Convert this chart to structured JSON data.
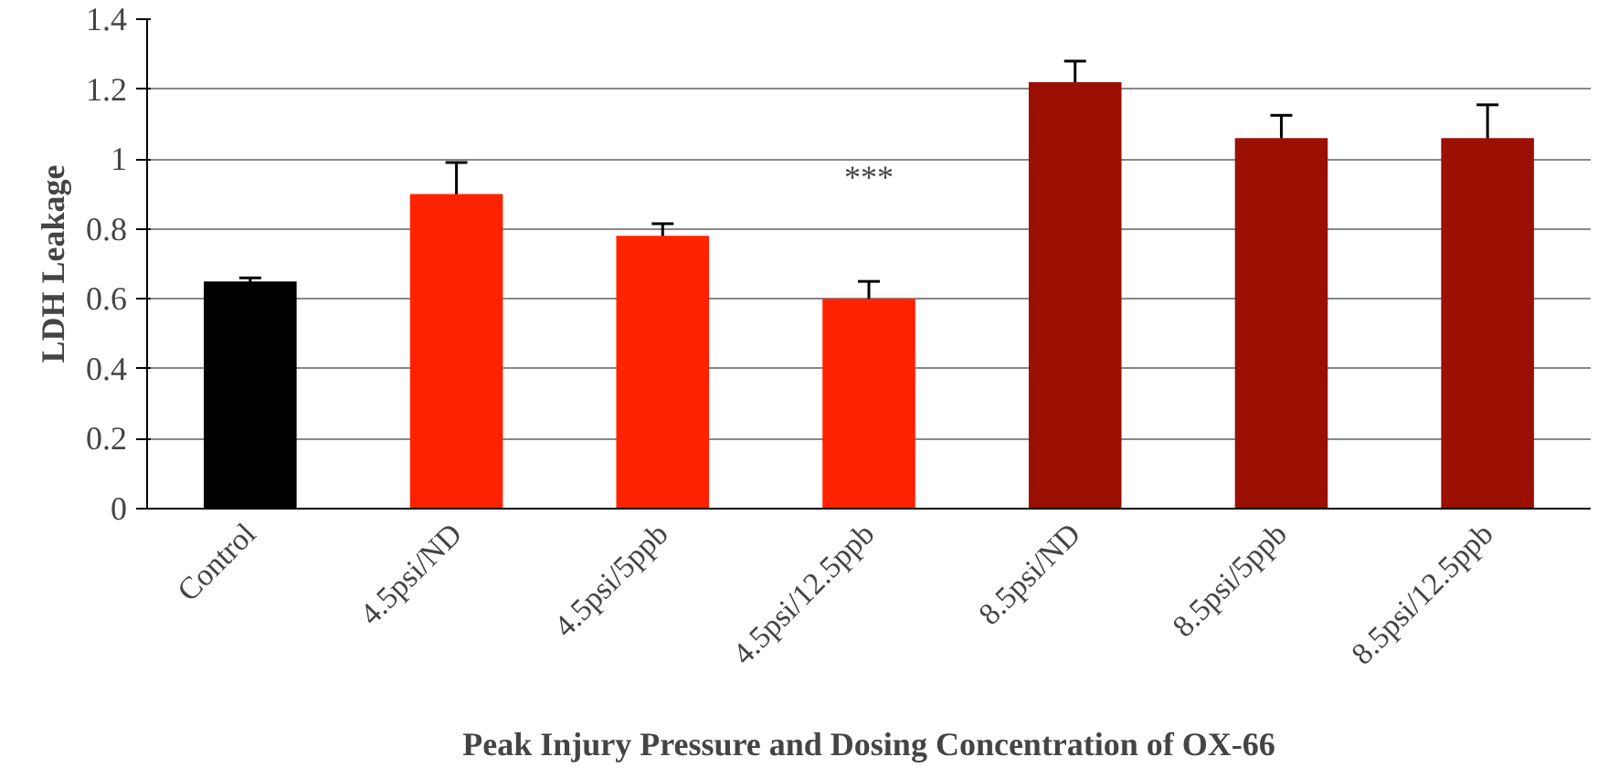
{
  "chart_data": {
    "type": "bar",
    "ylabel": "LDH Leakage",
    "xlabel": "Peak Injury Pressure and Dosing Concentration of OX-66",
    "categories": [
      "Control",
      "4.5psi/ND",
      "4.5psi/5ppb",
      "4.5psi/12.5ppb",
      "8.5psi/ND",
      "8.5psi/5ppb",
      "8.5psi/12.5ppb"
    ],
    "values": [
      0.65,
      0.9,
      0.78,
      0.6,
      1.22,
      1.06,
      1.06
    ],
    "errors": [
      0.01,
      0.09,
      0.035,
      0.05,
      0.06,
      0.065,
      0.095
    ],
    "colors": [
      "#000000",
      "#ff2200",
      "#ff2200",
      "#ff2200",
      "#9b1000",
      "#9b1000",
      "#9b1000"
    ],
    "ylim": [
      0,
      1.4
    ],
    "yticks": [
      0,
      0.2,
      0.4,
      0.6,
      0.8,
      1,
      1.2,
      1.4
    ],
    "grid": "y",
    "annotations": [
      "***"
    ]
  }
}
